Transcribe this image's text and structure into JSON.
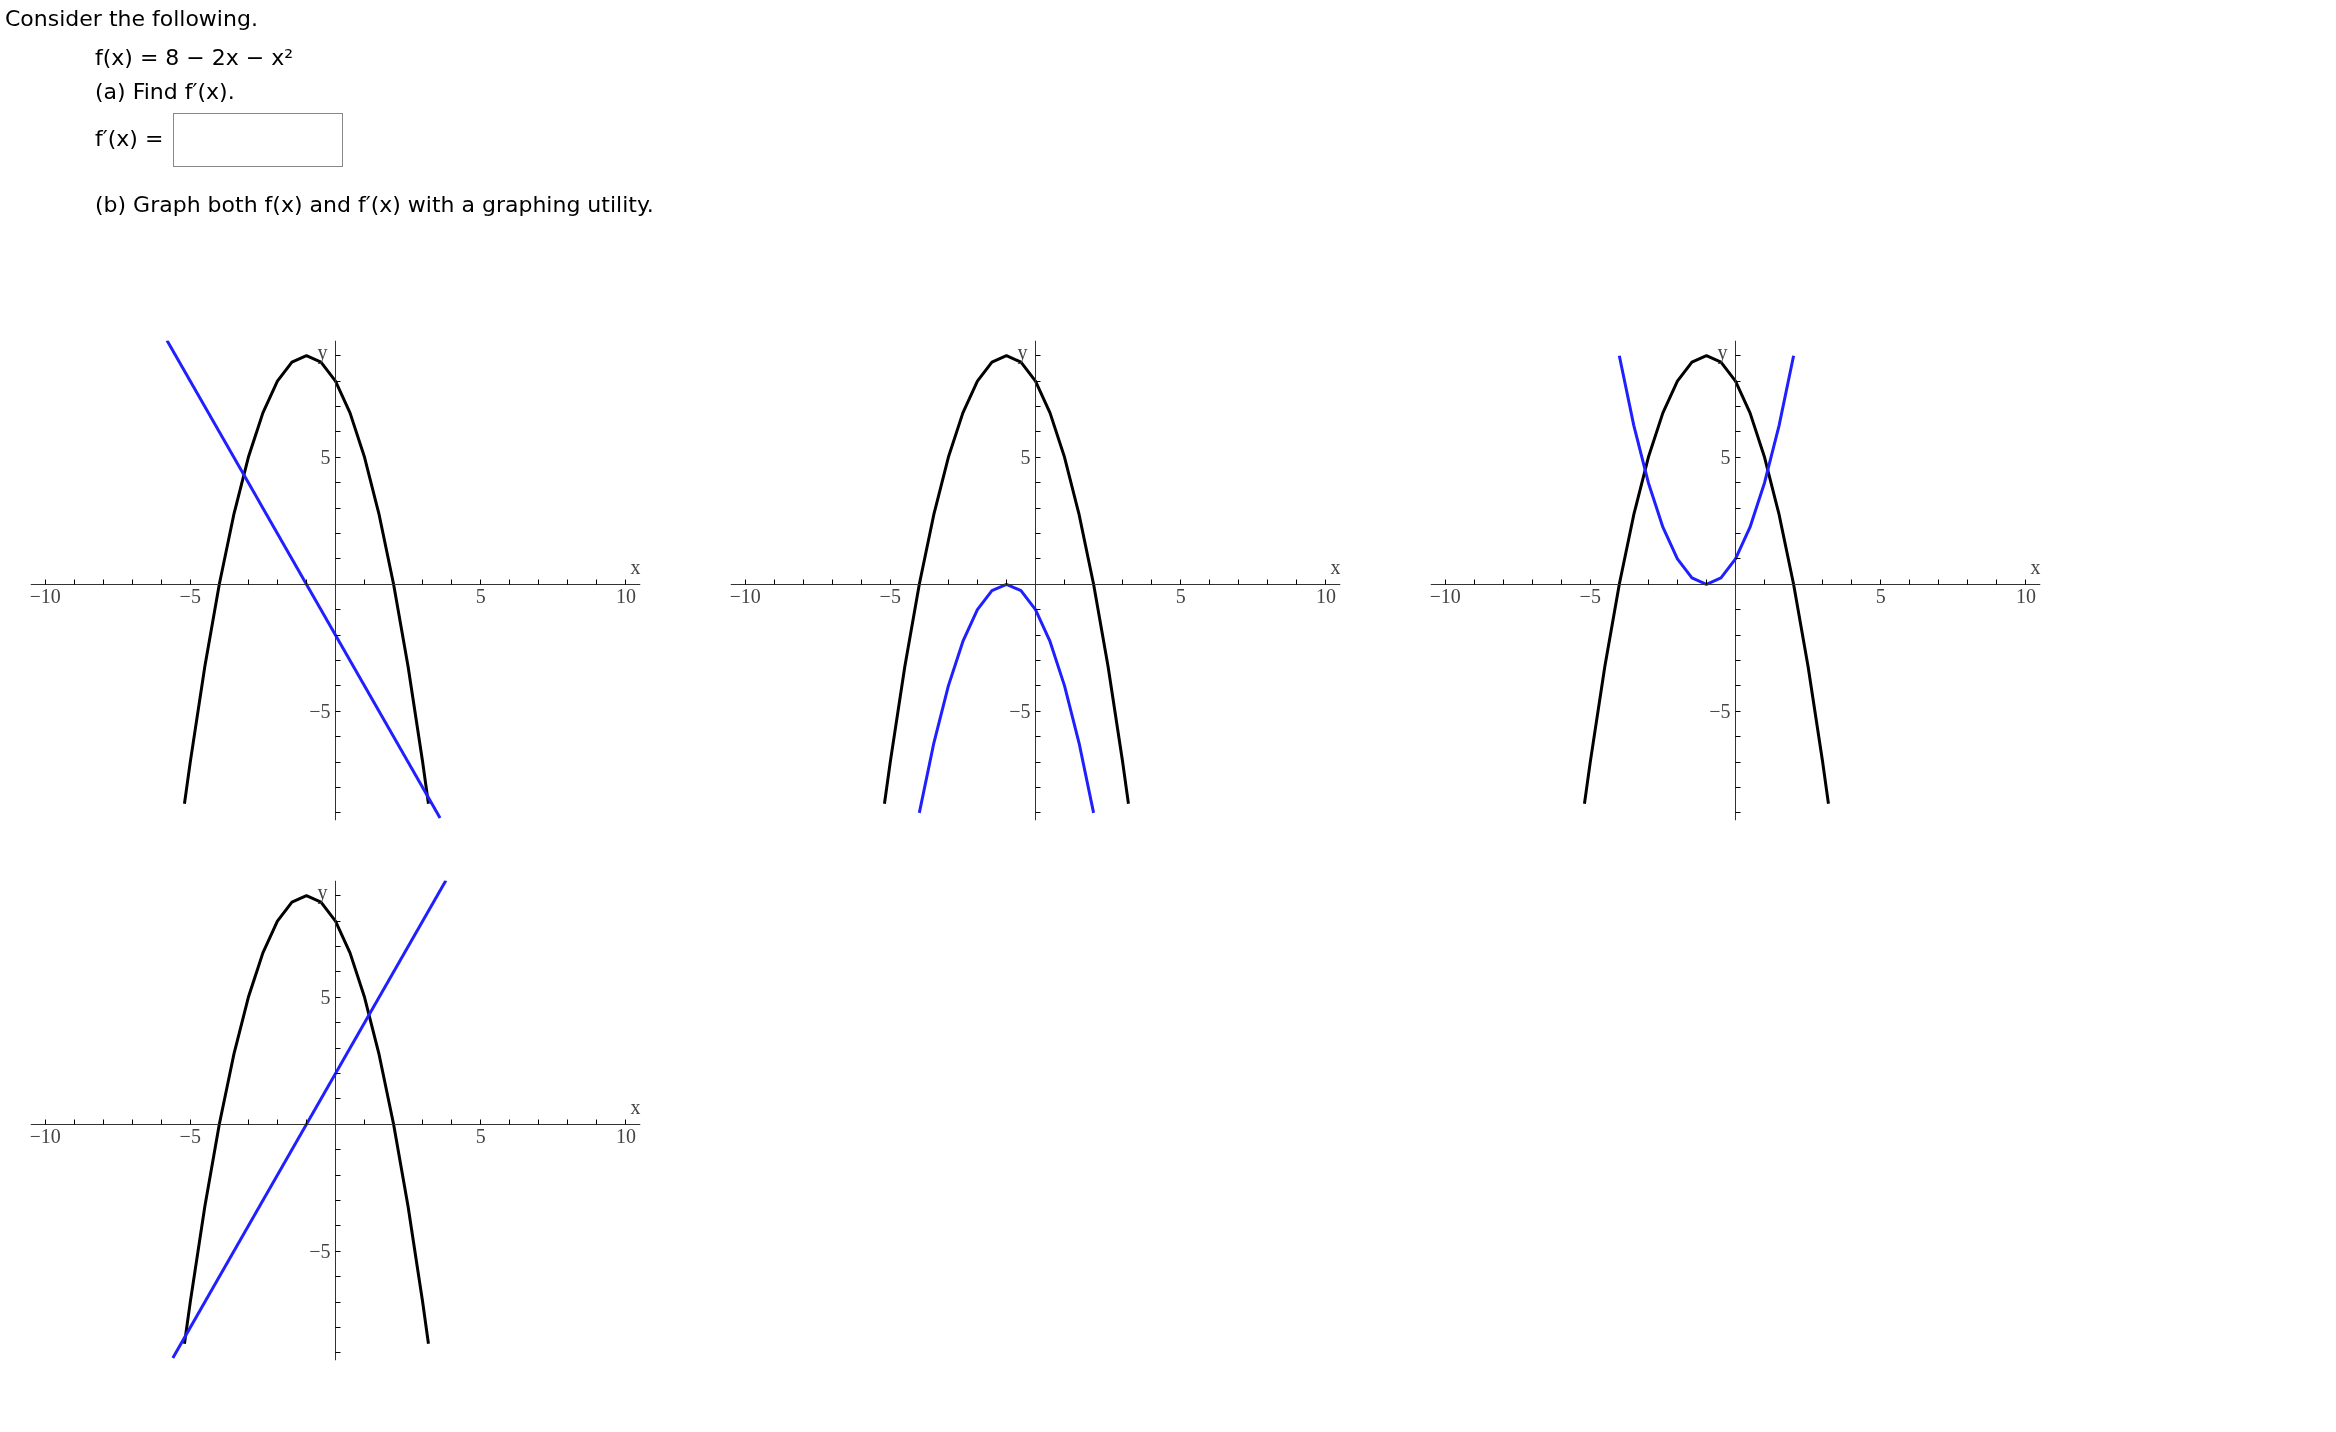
{
  "chart_data": [
    {
      "type": "other",
      "annotations": [
        "Consider the following.",
        "f(x) = 8 − 2x − x²",
        "(a) Find f′(x).",
        "f′(x) =",
        "(b) Graph both f(x) and f′(x) with a graphing utility."
      ]
    },
    {
      "type": "line",
      "xlabel": "x",
      "ylabel": "y",
      "xlim": [
        -10.5,
        10.5
      ],
      "ylim": [
        -9.3,
        9.6
      ],
      "grid": false,
      "marker": "none",
      "line_style": "solid",
      "xticks": [
        {
          "value": -10,
          "label": "−10"
        },
        {
          "value": -9,
          "label": null
        },
        {
          "value": -8,
          "label": null
        },
        {
          "value": -7,
          "label": null
        },
        {
          "value": -6,
          "label": null
        },
        {
          "value": -5,
          "label": "−5"
        },
        {
          "value": -4,
          "label": null
        },
        {
          "value": -3,
          "label": null
        },
        {
          "value": -2,
          "label": null
        },
        {
          "value": -1,
          "label": null
        },
        {
          "value": 1,
          "label": null
        },
        {
          "value": 2,
          "label": null
        },
        {
          "value": 3,
          "label": null
        },
        {
          "value": 4,
          "label": null
        },
        5,
        {
          "value": 6,
          "label": null
        },
        {
          "value": 7,
          "label": null
        },
        {
          "value": 8,
          "label": null
        },
        {
          "value": 9,
          "label": null
        },
        10
      ],
      "yticks": [
        {
          "value": -9,
          "label": null
        },
        {
          "value": -8,
          "label": null
        },
        {
          "value": -7,
          "label": null
        },
        {
          "value": -6,
          "label": null
        },
        {
          "value": -5,
          "label": "−5"
        },
        {
          "value": -4,
          "label": null
        },
        {
          "value": -3,
          "label": null
        },
        {
          "value": -2,
          "label": null
        },
        {
          "value": -1,
          "label": null
        },
        {
          "value": 1,
          "label": null
        },
        {
          "value": 2,
          "label": null
        },
        {
          "value": 3,
          "label": null
        },
        {
          "value": 4,
          "label": null
        },
        5,
        {
          "value": 6,
          "label": null
        },
        {
          "value": 7,
          "label": null
        },
        {
          "value": 8,
          "label": null
        },
        {
          "value": 9,
          "label": null
        }
      ],
      "series": [
        {
          "color": "#000000",
          "x": [
            -5.2,
            -5,
            -4.5,
            -4,
            -3.5,
            -3,
            -2.5,
            -2,
            -1.5,
            -1,
            -0.5,
            0,
            0.5,
            1,
            1.5,
            2,
            2.5,
            3,
            3.2
          ],
          "values": [
            -8.64,
            -7,
            -3.25,
            0,
            2.75,
            5,
            6.75,
            8,
            8.75,
            9,
            8.75,
            8,
            6.75,
            5,
            2.75,
            0,
            -3.25,
            -7,
            -8.64
          ]
        },
        {
          "color": "#2020ff",
          "x": [
            -5.8,
            3.6
          ],
          "values": [
            9.6,
            -9.2
          ]
        }
      ]
    },
    {
      "type": "line",
      "xlabel": "x",
      "ylabel": "y",
      "xlim": [
        -10.5,
        10.5
      ],
      "ylim": [
        -9.3,
        9.6
      ],
      "grid": false,
      "marker": "none",
      "line_style": "solid",
      "xticks": [
        {
          "value": -10,
          "label": "−10"
        },
        {
          "value": -9,
          "label": null
        },
        {
          "value": -8,
          "label": null
        },
        {
          "value": -7,
          "label": null
        },
        {
          "value": -6,
          "label": null
        },
        {
          "value": -5,
          "label": "−5"
        },
        {
          "value": -4,
          "label": null
        },
        {
          "value": -3,
          "label": null
        },
        {
          "value": -2,
          "label": null
        },
        {
          "value": -1,
          "label": null
        },
        {
          "value": 1,
          "label": null
        },
        {
          "value": 2,
          "label": null
        },
        {
          "value": 3,
          "label": null
        },
        {
          "value": 4,
          "label": null
        },
        5,
        {
          "value": 6,
          "label": null
        },
        {
          "value": 7,
          "label": null
        },
        {
          "value": 8,
          "label": null
        },
        {
          "value": 9,
          "label": null
        },
        10
      ],
      "yticks": [
        {
          "value": -9,
          "label": null
        },
        {
          "value": -8,
          "label": null
        },
        {
          "value": -7,
          "label": null
        },
        {
          "value": -6,
          "label": null
        },
        {
          "value": -5,
          "label": "−5"
        },
        {
          "value": -4,
          "label": null
        },
        {
          "value": -3,
          "label": null
        },
        {
          "value": -2,
          "label": null
        },
        {
          "value": -1,
          "label": null
        },
        {
          "value": 1,
          "label": null
        },
        {
          "value": 2,
          "label": null
        },
        {
          "value": 3,
          "label": null
        },
        {
          "value": 4,
          "label": null
        },
        5,
        {
          "value": 6,
          "label": null
        },
        {
          "value": 7,
          "label": null
        },
        {
          "value": 8,
          "label": null
        },
        {
          "value": 9,
          "label": null
        }
      ],
      "series": [
        {
          "color": "#000000",
          "x": [
            -5.2,
            -5,
            -4.5,
            -4,
            -3.5,
            -3,
            -2.5,
            -2,
            -1.5,
            -1,
            -0.5,
            0,
            0.5,
            1,
            1.5,
            2,
            2.5,
            3,
            3.2
          ],
          "values": [
            -8.64,
            -7,
            -3.25,
            0,
            2.75,
            5,
            6.75,
            8,
            8.75,
            9,
            8.75,
            8,
            6.75,
            5,
            2.75,
            0,
            -3.25,
            -7,
            -8.64
          ]
        },
        {
          "color": "#2020ff",
          "x": [
            -4,
            -3.5,
            -3,
            -2.5,
            -2,
            -1.5,
            -1,
            -0.5,
            0,
            0.5,
            1,
            1.5,
            2
          ],
          "values": [
            -9,
            -6.25,
            -4,
            -2.25,
            -1,
            -0.25,
            0,
            -0.25,
            -1,
            -2.25,
            -4,
            -6.25,
            -9
          ]
        }
      ]
    },
    {
      "type": "line",
      "xlabel": "x",
      "ylabel": "y",
      "xlim": [
        -10.5,
        10.5
      ],
      "ylim": [
        -9.3,
        9.6
      ],
      "grid": false,
      "marker": "none",
      "line_style": "solid",
      "xticks": [
        {
          "value": -10,
          "label": "−10"
        },
        {
          "value": -9,
          "label": null
        },
        {
          "value": -8,
          "label": null
        },
        {
          "value": -7,
          "label": null
        },
        {
          "value": -6,
          "label": null
        },
        {
          "value": -5,
          "label": "−5"
        },
        {
          "value": -4,
          "label": null
        },
        {
          "value": -3,
          "label": null
        },
        {
          "value": -2,
          "label": null
        },
        {
          "value": -1,
          "label": null
        },
        {
          "value": 1,
          "label": null
        },
        {
          "value": 2,
          "label": null
        },
        {
          "value": 3,
          "label": null
        },
        {
          "value": 4,
          "label": null
        },
        5,
        {
          "value": 6,
          "label": null
        },
        {
          "value": 7,
          "label": null
        },
        {
          "value": 8,
          "label": null
        },
        {
          "value": 9,
          "label": null
        },
        10
      ],
      "yticks": [
        {
          "value": -9,
          "label": null
        },
        {
          "value": -8,
          "label": null
        },
        {
          "value": -7,
          "label": null
        },
        {
          "value": -6,
          "label": null
        },
        {
          "value": -5,
          "label": "−5"
        },
        {
          "value": -4,
          "label": null
        },
        {
          "value": -3,
          "label": null
        },
        {
          "value": -2,
          "label": null
        },
        {
          "value": -1,
          "label": null
        },
        {
          "value": 1,
          "label": null
        },
        {
          "value": 2,
          "label": null
        },
        {
          "value": 3,
          "label": null
        },
        {
          "value": 4,
          "label": null
        },
        5,
        {
          "value": 6,
          "label": null
        },
        {
          "value": 7,
          "label": null
        },
        {
          "value": 8,
          "label": null
        },
        {
          "value": 9,
          "label": null
        }
      ],
      "series": [
        {
          "color": "#000000",
          "x": [
            -5.2,
            -5,
            -4.5,
            -4,
            -3.5,
            -3,
            -2.5,
            -2,
            -1.5,
            -1,
            -0.5,
            0,
            0.5,
            1,
            1.5,
            2,
            2.5,
            3,
            3.2
          ],
          "values": [
            -8.64,
            -7,
            -3.25,
            0,
            2.75,
            5,
            6.75,
            8,
            8.75,
            9,
            8.75,
            8,
            6.75,
            5,
            2.75,
            0,
            -3.25,
            -7,
            -8.64
          ]
        },
        {
          "color": "#2020ff",
          "x": [
            -4,
            -3.5,
            -3,
            -2.5,
            -2,
            -1.5,
            -1,
            -0.5,
            0,
            0.5,
            1,
            1.5,
            2
          ],
          "values": [
            9,
            6.25,
            4,
            2.25,
            1,
            0.25,
            0,
            0.25,
            1,
            2.25,
            4,
            6.25,
            9
          ]
        }
      ]
    },
    {
      "type": "line",
      "xlabel": "x",
      "ylabel": "y",
      "xlim": [
        -10.5,
        10.5
      ],
      "ylim": [
        -9.3,
        9.6
      ],
      "grid": false,
      "marker": "none",
      "line_style": "solid",
      "xticks": [
        {
          "value": -10,
          "label": "−10"
        },
        {
          "value": -9,
          "label": null
        },
        {
          "value": -8,
          "label": null
        },
        {
          "value": -7,
          "label": null
        },
        {
          "value": -6,
          "label": null
        },
        {
          "value": -5,
          "label": "−5"
        },
        {
          "value": -4,
          "label": null
        },
        {
          "value": -3,
          "label": null
        },
        {
          "value": -2,
          "label": null
        },
        {
          "value": -1,
          "label": null
        },
        {
          "value": 1,
          "label": null
        },
        {
          "value": 2,
          "label": null
        },
        {
          "value": 3,
          "label": null
        },
        {
          "value": 4,
          "label": null
        },
        5,
        {
          "value": 6,
          "label": null
        },
        {
          "value": 7,
          "label": null
        },
        {
          "value": 8,
          "label": null
        },
        {
          "value": 9,
          "label": null
        },
        10
      ],
      "yticks": [
        {
          "value": -9,
          "label": null
        },
        {
          "value": -8,
          "label": null
        },
        {
          "value": -7,
          "label": null
        },
        {
          "value": -6,
          "label": null
        },
        {
          "value": -5,
          "label": "−5"
        },
        {
          "value": -4,
          "label": null
        },
        {
          "value": -3,
          "label": null
        },
        {
          "value": -2,
          "label": null
        },
        {
          "value": -1,
          "label": null
        },
        {
          "value": 1,
          "label": null
        },
        {
          "value": 2,
          "label": null
        },
        {
          "value": 3,
          "label": null
        },
        {
          "value": 4,
          "label": null
        },
        5,
        {
          "value": 6,
          "label": null
        },
        {
          "value": 7,
          "label": null
        },
        {
          "value": 8,
          "label": null
        },
        {
          "value": 9,
          "label": null
        }
      ],
      "series": [
        {
          "color": "#000000",
          "x": [
            -5.2,
            -5,
            -4.5,
            -4,
            -3.5,
            -3,
            -2.5,
            -2,
            -1.5,
            -1,
            -0.5,
            0,
            0.5,
            1,
            1.5,
            2,
            2.5,
            3,
            3.2
          ],
          "values": [
            -8.64,
            -7,
            -3.25,
            0,
            2.75,
            5,
            6.75,
            8,
            8.75,
            9,
            8.75,
            8,
            6.75,
            5,
            2.75,
            0,
            -3.25,
            -7,
            -8.64
          ]
        },
        {
          "color": "#2020ff",
          "x": [
            -5.6,
            3.8
          ],
          "values": [
            -9.2,
            9.6
          ]
        }
      ]
    }
  ]
}
